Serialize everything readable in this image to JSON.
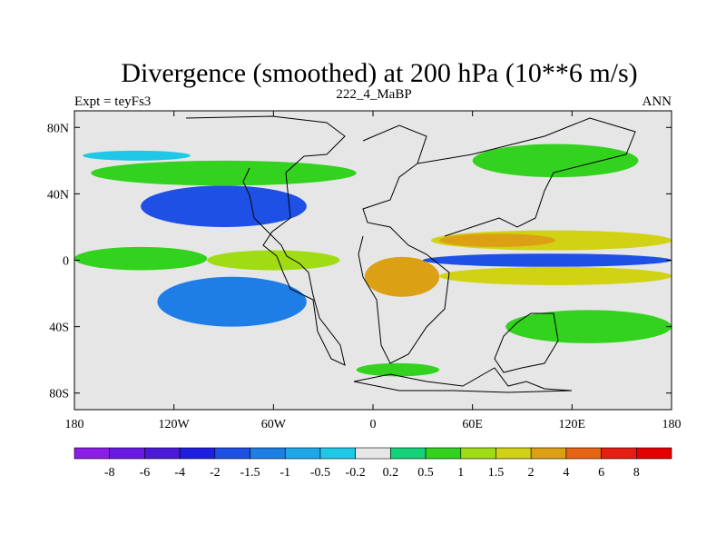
{
  "chart_data": {
    "type": "heatmap",
    "title": "Divergence (smoothed) at 200 hPa (10**6 m/s)",
    "left_label": "Expt = teyFs3",
    "center_label": "222_4_MaBP",
    "right_label": "ANN",
    "x_ticks": [
      "180",
      "120W",
      "60W",
      "0",
      "60E",
      "120E",
      "180"
    ],
    "x_tick_values": [
      -180,
      -120,
      -60,
      0,
      60,
      120,
      180
    ],
    "y_ticks": [
      "80N",
      "40N",
      "0",
      "40S",
      "80S"
    ],
    "y_tick_values": [
      80,
      40,
      0,
      -40,
      -80
    ],
    "xlim": [
      -180,
      180
    ],
    "ylim": [
      -90,
      90
    ],
    "colorbar_labels": [
      "-8",
      "-6",
      "-4",
      "-2",
      "-1.5",
      "-1",
      "-0.5",
      "-0.2",
      "0.2",
      "0.5",
      "1",
      "1.5",
      "2",
      "4",
      "6",
      "8"
    ],
    "colorbar_colors": [
      "#8a1ee6",
      "#6a1ae6",
      "#4a1ad8",
      "#1e1ee0",
      "#1e50e6",
      "#1e7ee6",
      "#1ea6e6",
      "#1ec8e6",
      "#e6e6e6",
      "#14d278",
      "#32d21e",
      "#a0dc14",
      "#d2d214",
      "#dca014",
      "#e66414",
      "#e61e14",
      "#e60000"
    ],
    "regions": [
      {
        "name": "eq-pacific-west",
        "lon": [
          -180,
          -100
        ],
        "lat": [
          -6,
          8
        ],
        "value": 0.5
      },
      {
        "name": "eq-central",
        "lon": [
          -100,
          -20
        ],
        "lat": [
          -6,
          6
        ],
        "value": 1
      },
      {
        "name": "eq-atlantic-africa",
        "lon": [
          -5,
          40
        ],
        "lat": [
          -22,
          2
        ],
        "value": 2
      },
      {
        "name": "eq-indian-pos",
        "lon": [
          35,
          180
        ],
        "lat": [
          6,
          18
        ],
        "value": 1.5
      },
      {
        "name": "eq-indian-strong-pos",
        "lon": [
          40,
          110
        ],
        "lat": [
          8,
          16
        ],
        "value": 2
      },
      {
        "name": "eq-indian-neg",
        "lon": [
          30,
          180
        ],
        "lat": [
          -4,
          4
        ],
        "value": -2
      },
      {
        "name": "s-indian-pos",
        "lon": [
          40,
          180
        ],
        "lat": [
          -15,
          -4
        ],
        "value": 1.5
      },
      {
        "name": "americas-neg-north",
        "lon": [
          -140,
          -40
        ],
        "lat": [
          20,
          45
        ],
        "value": -2
      },
      {
        "name": "americas-neg-south",
        "lon": [
          -130,
          -40
        ],
        "lat": [
          -40,
          -10
        ],
        "value": -1.5
      },
      {
        "name": "n-midlat-pos",
        "lon": [
          -170,
          -10
        ],
        "lat": [
          45,
          60
        ],
        "value": 0.5
      },
      {
        "name": "asia-pos",
        "lon": [
          60,
          160
        ],
        "lat": [
          50,
          70
        ],
        "value": 0.5
      },
      {
        "name": "s-midlat-pos",
        "lon": [
          80,
          180
        ],
        "lat": [
          -50,
          -30
        ],
        "value": 0.5
      },
      {
        "name": "arctic-neg",
        "lon": [
          -175,
          -110
        ],
        "lat": [
          60,
          66
        ],
        "value": -0.5
      },
      {
        "name": "antarctic-pos",
        "lon": [
          -10,
          40
        ],
        "lat": [
          -70,
          -62
        ],
        "value": 0.5
      }
    ]
  }
}
